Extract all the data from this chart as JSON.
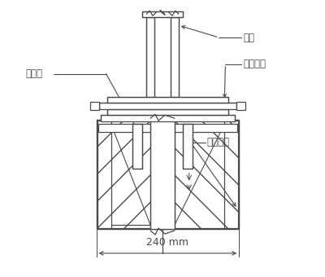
{
  "bg_color": "#ffffff",
  "line_color": "#4a4a4a",
  "labels": {
    "yumai": "预埋件",
    "lizhu": "立柱",
    "lizhu_diban": "立柱底板",
    "wenshi_jichu": "温室基础",
    "dimension": "240 mm"
  },
  "label_fontsize": 8.5,
  "dim_fontsize": 9
}
